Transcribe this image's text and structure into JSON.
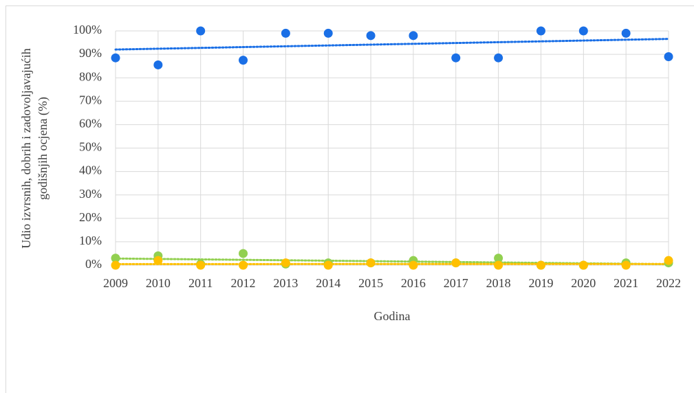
{
  "chart_data": {
    "type": "scatter",
    "x_label": "Godina",
    "y_label": [
      "Udio izvrsnih, dobrih i zadovoljavajućih",
      "godišnjih ocjena (%)"
    ],
    "x": [
      2009,
      2010,
      2011,
      2012,
      2013,
      2014,
      2015,
      2016,
      2017,
      2018,
      2019,
      2020,
      2021,
      2022
    ],
    "xlim": [
      2009,
      2022
    ],
    "xticks": [
      2009,
      2010,
      2011,
      2012,
      2013,
      2014,
      2015,
      2016,
      2017,
      2018,
      2019,
      2020,
      2021,
      2022
    ],
    "ylim": [
      0,
      100
    ],
    "yticks": [
      {
        "value": 0,
        "label": "0%"
      },
      {
        "value": 10,
        "label": "10%"
      },
      {
        "value": 20,
        "label": "20%"
      },
      {
        "value": 30,
        "label": "30%"
      },
      {
        "value": 40,
        "label": "40%"
      },
      {
        "value": 50,
        "label": "50%"
      },
      {
        "value": 60,
        "label": "60%"
      },
      {
        "value": 70,
        "label": "70%"
      },
      {
        "value": 80,
        "label": "80%"
      },
      {
        "value": 90,
        "label": "90%"
      },
      {
        "value": 100,
        "label": "100%"
      }
    ],
    "grid": true,
    "trendline": true,
    "series": [
      {
        "color": "#1a6fe6",
        "values": [
          88.5,
          85.5,
          100,
          87.5,
          99,
          99,
          98,
          98,
          88.5,
          88.5,
          100,
          100,
          99,
          89
        ]
      },
      {
        "color": "#92d050",
        "values": [
          3,
          4,
          0.5,
          5,
          0.5,
          1,
          1,
          2,
          1,
          3,
          0,
          0,
          1,
          1
        ]
      },
      {
        "color": "#ffc000",
        "values": [
          0,
          2,
          0,
          0,
          1,
          0,
          1,
          0,
          1,
          0,
          0,
          0,
          0,
          2
        ]
      }
    ]
  }
}
